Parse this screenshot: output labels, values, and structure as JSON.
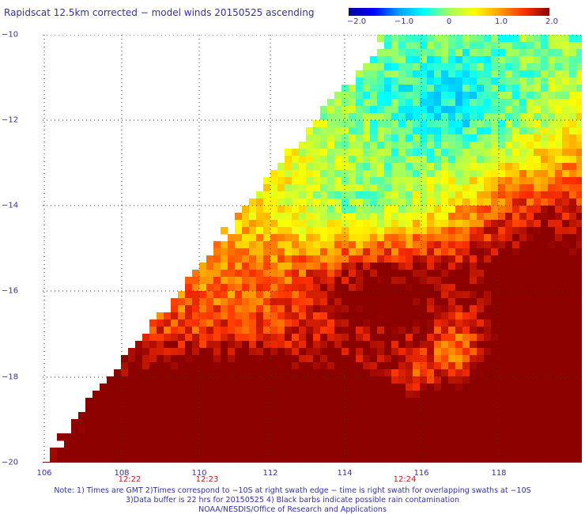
{
  "title": "Rapidscat 12.5km corrected − model winds 20150525 ascending",
  "colorbar": {
    "ticks": [
      "−2.0",
      "−1.0",
      "0",
      "1.0",
      "2.0"
    ],
    "min": -2.0,
    "max": 2.0,
    "stops": [
      "#0000a0",
      "#0000ff",
      "#00a0ff",
      "#00ffff",
      "#a0ff60",
      "#ffff00",
      "#ffa000",
      "#ff3000",
      "#8b0000"
    ]
  },
  "map": {
    "lat_labels": [
      "−10",
      "−12",
      "−14",
      "−16",
      "−18",
      "−20"
    ],
    "lon_labels": [
      "106",
      "108",
      "110",
      "112",
      "114",
      "116",
      "118"
    ],
    "time_labels": [
      "12:22",
      "12:23",
      "12:24"
    ]
  },
  "notes": [
    "Note: 1) Times are GMT 2)Times correspond to −10S at right swath edge − time is right swath for overlapping swaths at −10S",
    "3)Data buffer is 22 hrs for 20150525 4) Black barbs indicate possible rain contamination",
    "NOAA/NESDIS/Office of Research and Applications"
  ]
}
